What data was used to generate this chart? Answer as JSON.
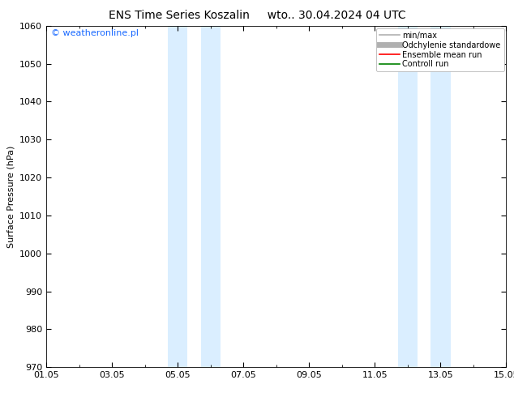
{
  "title": "ENS Time Series Koszalin     wto.. 30.04.2024 04 UTC",
  "ylabel": "Surface Pressure (hPa)",
  "ylim": [
    970,
    1060
  ],
  "yticks": [
    970,
    980,
    990,
    1000,
    1010,
    1020,
    1030,
    1040,
    1050,
    1060
  ],
  "xlim_start": 0,
  "xlim_end": 14,
  "xtick_labels": [
    "01.05",
    "03.05",
    "05.05",
    "07.05",
    "09.05",
    "11.05",
    "13.05",
    "15.05"
  ],
  "xtick_positions": [
    0,
    2,
    4,
    6,
    8,
    10,
    12,
    14
  ],
  "blue_bands": [
    {
      "xmin": 3.7,
      "xmax": 4.3
    },
    {
      "xmin": 4.7,
      "xmax": 5.3
    },
    {
      "xmin": 10.7,
      "xmax": 11.3
    },
    {
      "xmin": 11.7,
      "xmax": 12.3
    }
  ],
  "band_color": "#daeeff",
  "watermark_text": "© weatheronline.pl",
  "watermark_color": "#1a6aff",
  "bg_color": "#ffffff",
  "legend_entries": [
    {
      "label": "min/max",
      "color": "#b0b0b0",
      "lw": 1.2,
      "linestyle": "-"
    },
    {
      "label": "Odchylenie standardowe",
      "color": "#b0b0b0",
      "lw": 5,
      "linestyle": "-"
    },
    {
      "label": "Ensemble mean run",
      "color": "#ff0000",
      "lw": 1.2,
      "linestyle": "-"
    },
    {
      "label": "Controll run",
      "color": "#008000",
      "lw": 1.2,
      "linestyle": "-"
    }
  ],
  "title_fontsize": 10,
  "axis_label_fontsize": 8,
  "tick_fontsize": 8,
  "legend_fontsize": 7,
  "watermark_fontsize": 8
}
